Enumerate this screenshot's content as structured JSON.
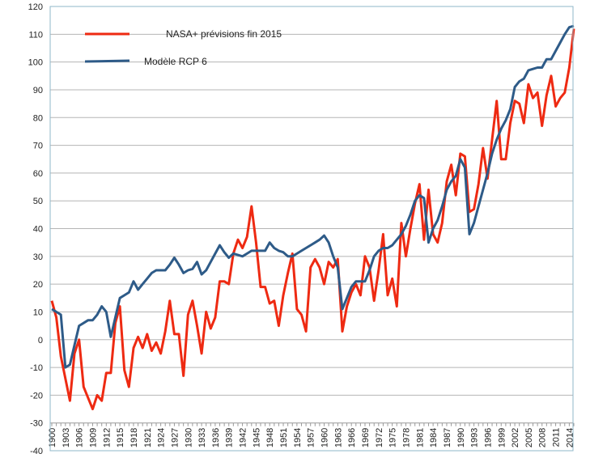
{
  "chart_data": {
    "type": "line",
    "title": "",
    "xlabel": "",
    "ylabel": "",
    "ylim": [
      -40,
      120
    ],
    "yticks": [
      -40,
      -30,
      -20,
      -10,
      0,
      10,
      20,
      30,
      40,
      50,
      60,
      70,
      80,
      90,
      100,
      110,
      120
    ],
    "x_start": 1900,
    "x_end": 2015,
    "xtick_labels": [
      "1900",
      "1903",
      "1906",
      "1909",
      "1912",
      "1915",
      "1918",
      "1921",
      "1924",
      "1927",
      "1930",
      "1933",
      "1936",
      "1939",
      "1942",
      "1945",
      "1948",
      "1951",
      "1954",
      "1957",
      "1960",
      "1963",
      "1966",
      "1969",
      "1972",
      "1975",
      "1978",
      "1981",
      "1984",
      "1987",
      "1990",
      "1993",
      "1996",
      "1999",
      "2002",
      "2005",
      "2008",
      "2011",
      "2014"
    ],
    "grid": true,
    "legend_position": "top-left",
    "series": [
      {
        "name": "NASA+ prévisions fin 2015",
        "color": "#ee2a12",
        "values": [
          14,
          8,
          -6,
          -14,
          -22,
          -5,
          0,
          -17,
          -21,
          -25,
          -20,
          -22,
          -12,
          -12,
          6,
          12,
          -11,
          -17,
          -3,
          1,
          -3,
          2,
          -4,
          -1,
          -5,
          3,
          14,
          2,
          2,
          -13,
          9,
          14,
          5,
          -5,
          10,
          4,
          8,
          21,
          21,
          20,
          31,
          36,
          33,
          37,
          48,
          35,
          19,
          19,
          13,
          14,
          5,
          16,
          24,
          31,
          11,
          9,
          3,
          26,
          29,
          26,
          20,
          28,
          26,
          29,
          3,
          12,
          17,
          20,
          16,
          30,
          26,
          14,
          25,
          38,
          16,
          22,
          12,
          42,
          30,
          40,
          49,
          56,
          36,
          54,
          38,
          35,
          42,
          57,
          63,
          52,
          67,
          66,
          46,
          47,
          56,
          69,
          58,
          72,
          86,
          65,
          65,
          78,
          86,
          85,
          78,
          92,
          87,
          89,
          77,
          88,
          95,
          84,
          87,
          89,
          98,
          112
        ]
      },
      {
        "name": "Modèle RCP 6",
        "color": "#2e5b88",
        "values": [
          11,
          10,
          9,
          -10,
          -9,
          -2,
          5,
          6,
          7,
          7,
          9,
          12,
          10,
          1,
          8,
          15,
          16,
          17,
          21,
          18,
          20,
          22,
          24,
          25,
          25,
          25,
          27,
          29.5,
          27,
          24,
          25,
          25.5,
          28,
          23.5,
          25,
          28,
          31,
          34,
          31.5,
          29.5,
          31,
          30.5,
          30,
          31,
          32,
          32,
          32,
          32,
          35,
          33,
          32,
          31.5,
          30,
          30,
          31,
          32,
          33,
          34,
          35,
          36,
          37.5,
          35,
          30,
          26,
          11,
          15,
          19,
          21,
          21,
          21,
          25,
          30,
          32,
          33,
          33,
          34,
          36,
          38,
          41,
          45,
          50,
          52,
          51,
          35,
          40,
          43,
          48,
          54,
          57,
          59,
          65,
          62,
          38,
          42,
          48,
          54,
          60,
          67,
          72,
          76,
          79,
          83,
          91,
          93,
          94,
          97,
          97.5,
          98,
          98,
          101,
          101,
          104,
          107,
          110,
          112.5,
          113
        ]
      }
    ]
  }
}
